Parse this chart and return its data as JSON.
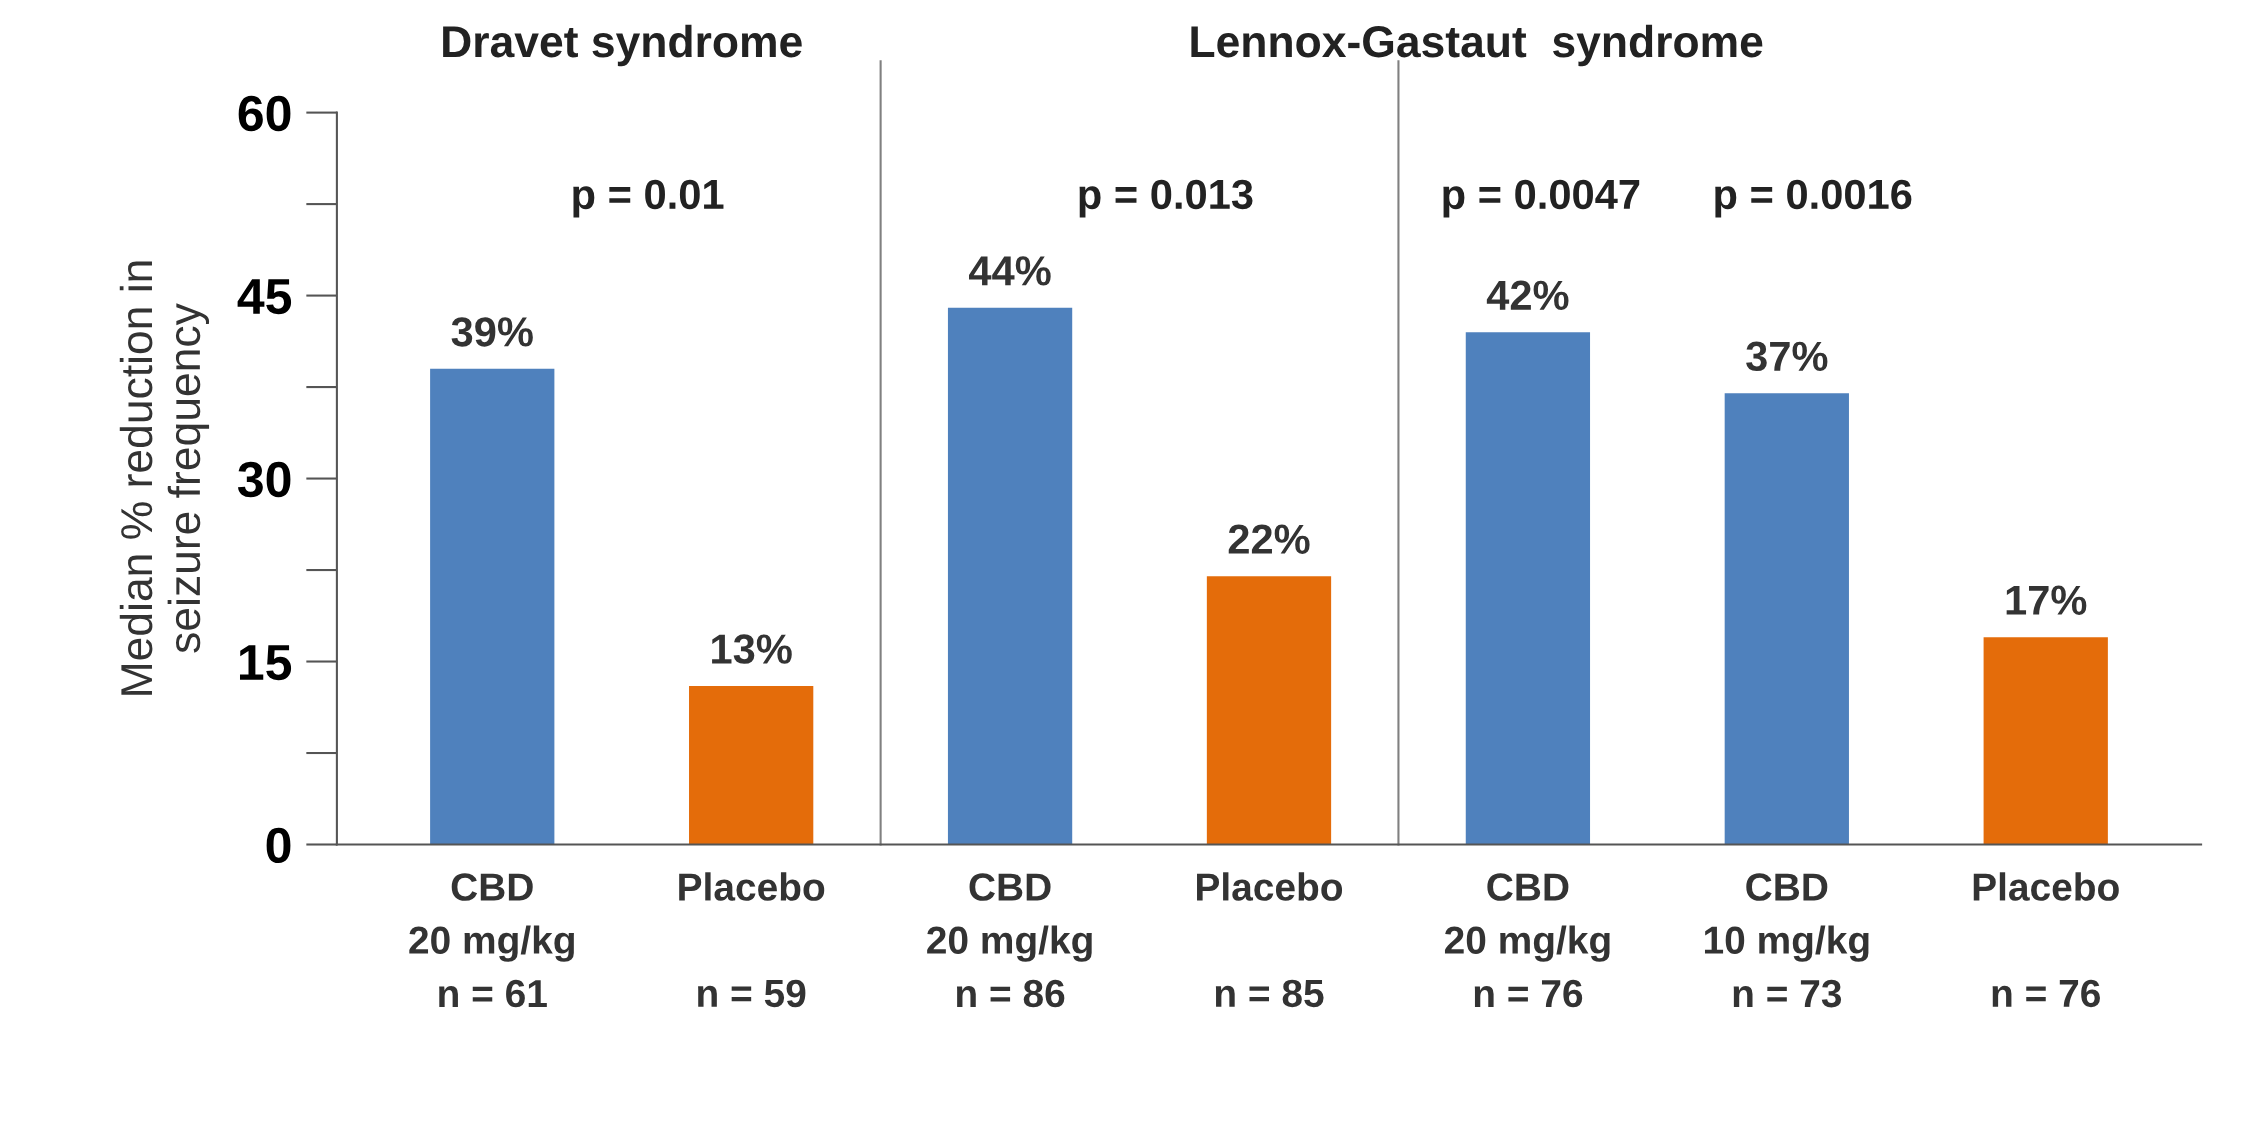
{
  "chart_data": {
    "type": "bar",
    "ylabel": "Median % reduction in\nseizure frequency",
    "categories": [
      "CBD\n20 mg/kg\nn = 61",
      "Placebo\n\nn = 59",
      "CBD\n20 mg/kg\nn = 86",
      "Placebo\n\nn = 85",
      "CBD\n20 mg/kg\nn = 76",
      "CBD\n10 mg/kg\nn = 73",
      "Placebo\n\nn = 76"
    ],
    "values": [
      39,
      13,
      44,
      22,
      42,
      37,
      17
    ],
    "colors": [
      "#4f81bd",
      "#e46c0a",
      "#4f81bd",
      "#e46c0a",
      "#4f81bd",
      "#4f81bd",
      "#e46c0a"
    ],
    "value_labels": [
      "39%",
      "13%",
      "44%",
      "22%",
      "42%",
      "37%",
      "17%"
    ],
    "ylim": [
      0,
      60
    ],
    "yticks": [
      0,
      15,
      30,
      45,
      60
    ],
    "grid": false,
    "legend": false,
    "annotations": [
      "Dravet syndrome",
      "Lennox-Gastaut  syndrome",
      "p = 0.01",
      "p = 0.013",
      "p = 0.0047",
      "p = 0.0016"
    ]
  }
}
